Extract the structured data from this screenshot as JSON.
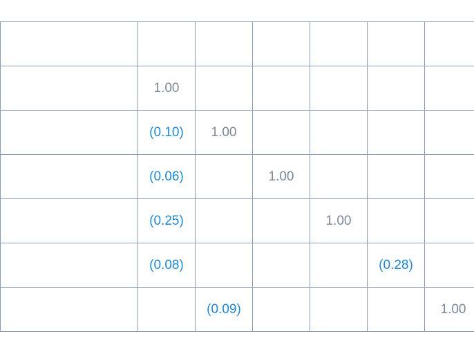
{
  "table": {
    "header": [
      "",
      "",
      "",
      "",
      "",
      "",
      ""
    ],
    "rows": [
      {
        "label": "",
        "cells": [
          "1.00",
          "",
          "",
          "",
          "",
          ""
        ]
      },
      {
        "label": "",
        "cells": [
          "(0.10)",
          "1.00",
          "",
          "",
          "",
          ""
        ]
      },
      {
        "label": "",
        "cells": [
          "(0.06)",
          "",
          "1.00",
          "",
          "",
          ""
        ]
      },
      {
        "label": "",
        "cells": [
          "(0.25)",
          "",
          "",
          "1.00",
          "",
          ""
        ]
      },
      {
        "label": "",
        "cells": [
          "(0.08)",
          "",
          "",
          "",
          "(0.28)",
          ""
        ]
      },
      {
        "label": "",
        "cells": [
          "",
          "(0.09)",
          "",
          "",
          "",
          "1.00"
        ]
      }
    ]
  },
  "colors": {
    "border": "#8a9bb3",
    "text": "#7c8799",
    "negative_text": "#1f88d6",
    "background": "#ffffff"
  }
}
